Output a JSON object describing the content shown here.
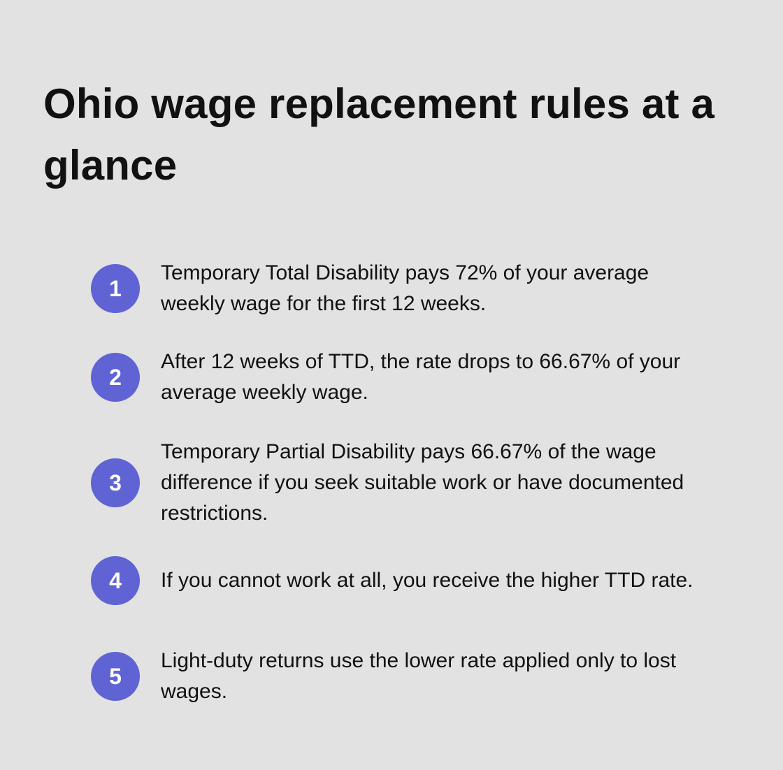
{
  "title": "Ohio wage replacement rules at a glance",
  "items": [
    {
      "number": "1",
      "text": "Temporary Total Disability pays 72% of your average weekly wage for the first 12 weeks."
    },
    {
      "number": "2",
      "text": "After 12 weeks of TTD, the rate drops to 66.67% of your average weekly wage."
    },
    {
      "number": "3",
      "text": "Temporary Partial Disability pays 66.67% of the wage difference if you seek suitable work or have documented restrictions."
    },
    {
      "number": "4",
      "text": "If you cannot work at all, you receive the higher TTD rate."
    },
    {
      "number": "5",
      "text": "Light-duty returns use the lower rate applied only to lost wages."
    }
  ]
}
